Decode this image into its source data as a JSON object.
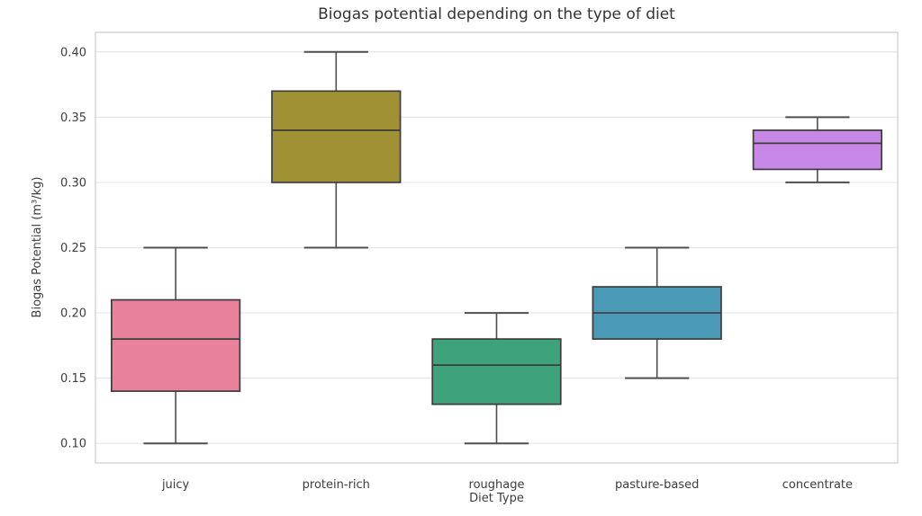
{
  "chart_data": {
    "type": "box",
    "title": "Biogas potential depending on the type of diet",
    "xlabel": "Diet Type",
    "ylabel": "Biogas Potential (m³/kg)",
    "categories": [
      "juicy",
      "protein-rich",
      "roughage",
      "pasture-based",
      "concentrate"
    ],
    "ytick_values": [
      0.1,
      0.15,
      0.2,
      0.25,
      0.3,
      0.35,
      0.4
    ],
    "ytick_labels": [
      "0.10",
      "0.15",
      "0.20",
      "0.25",
      "0.30",
      "0.35",
      "0.40"
    ],
    "ylim": [
      0.085,
      0.415
    ],
    "grid": "horizontal",
    "legend": "none",
    "boxes": [
      {
        "category": "juicy",
        "whisker_low": 0.1,
        "q1": 0.14,
        "median": 0.18,
        "q3": 0.21,
        "whisker_high": 0.25,
        "color": "#e8819b"
      },
      {
        "category": "protein-rich",
        "whisker_low": 0.25,
        "q1": 0.3,
        "median": 0.34,
        "q3": 0.37,
        "whisker_high": 0.4,
        "color": "#a09234"
      },
      {
        "category": "roughage",
        "whisker_low": 0.1,
        "q1": 0.13,
        "median": 0.16,
        "q3": 0.18,
        "whisker_high": 0.2,
        "color": "#3ea27a"
      },
      {
        "category": "pasture-based",
        "whisker_low": 0.15,
        "q1": 0.18,
        "median": 0.2,
        "q3": 0.22,
        "whisker_high": 0.25,
        "color": "#4a9ab8"
      },
      {
        "category": "concentrate",
        "whisker_low": 0.3,
        "q1": 0.31,
        "median": 0.33,
        "q3": 0.34,
        "whisker_high": 0.35,
        "color": "#c687e6"
      }
    ],
    "colors": {
      "box_edge": "#3c3c3c",
      "median_line": "#3c3c3c",
      "whisker": "#4f4f4f",
      "grid_line": "#e6e6e6",
      "plot_border": "#d2d2d2",
      "background": "#ffffff",
      "text": "#3d3d3d",
      "title_text": "#333333"
    }
  }
}
